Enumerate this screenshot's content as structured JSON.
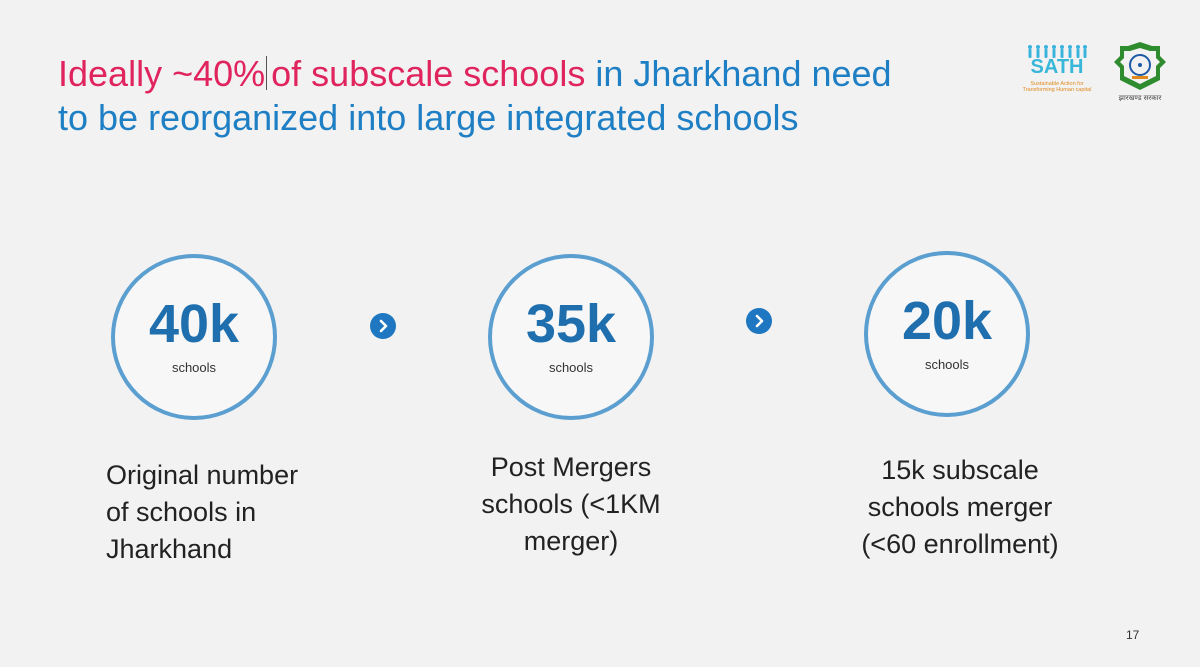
{
  "title": {
    "part1_highlight": "Ideally ~40%",
    "part2_highlight": "of subscale schools",
    "part3": " in Jharkhand need",
    "line2": "to be reorganized into large integrated schools"
  },
  "logos": {
    "sath": {
      "word": "SATH",
      "tagline_line1": "Sustainable Action for",
      "tagline_line2": "Transforming Human capital"
    },
    "government": {
      "caption": "झारखण्ड सरकार"
    }
  },
  "steps": [
    {
      "number": "40k",
      "unit": "schools",
      "description_lines": [
        "Original number",
        "of schools in",
        "Jharkhand"
      ]
    },
    {
      "number": "35k",
      "unit": "schools",
      "description_lines": [
        "Post Mergers",
        "schools (<1KM",
        "merger)"
      ]
    },
    {
      "number": "20k",
      "unit": "schools",
      "description_lines": [
        "15k subscale",
        "schools merger",
        "(<60 enrollment)"
      ]
    }
  ],
  "colors": {
    "title_blue": "#1e7fc4",
    "title_highlight": "#e0245e",
    "circle_border": "#5b9ed0",
    "number": "#1f6fae",
    "arrow": "#1e77c0"
  },
  "icons": [
    "chevron-right-icon",
    "sath-people-icon",
    "government-emblem-icon"
  ],
  "page_number": "17"
}
